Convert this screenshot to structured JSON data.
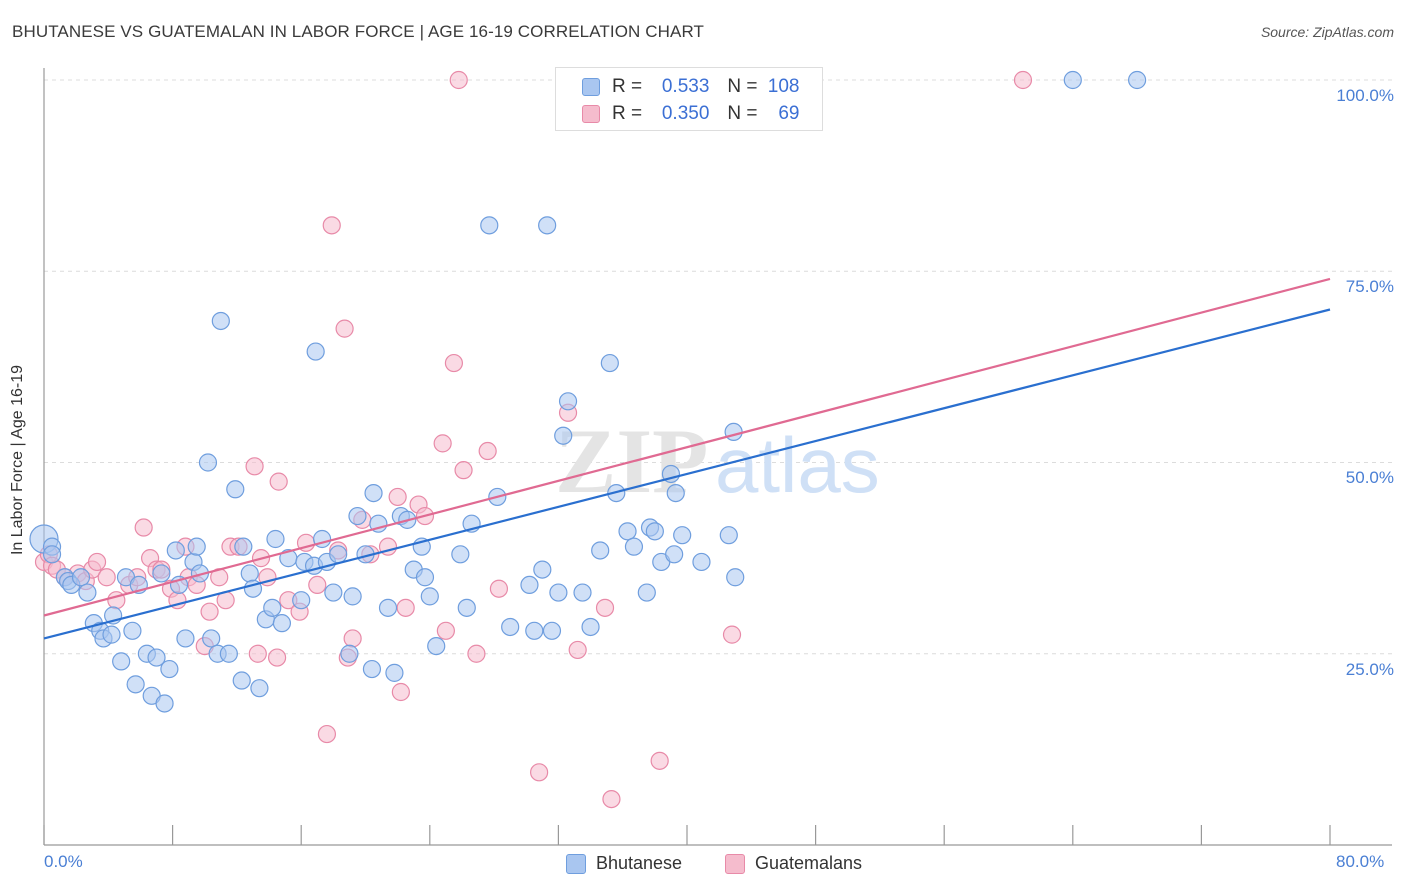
{
  "header": {
    "title": "BHUTANESE VS GUATEMALAN IN LABOR FORCE | AGE 16-19 CORRELATION CHART",
    "source": "Source: ZipAtlas.com"
  },
  "watermark": "ZIPatlas",
  "legend": {
    "rows": [
      {
        "r_label": "R =",
        "r_value": "0.533",
        "n_label": "N =",
        "n_value": "108"
      },
      {
        "r_label": "R =",
        "r_value": "0.350",
        "n_label": "N =",
        "n_value": "69"
      }
    ],
    "bottom": [
      "Bhutanese",
      "Guatemalans"
    ]
  },
  "colors": {
    "blue_fill": "#a9c6f0",
    "blue_stroke": "#6f9ede",
    "blue_line": "#2a6fcf",
    "pink_fill": "#f5bccd",
    "pink_stroke": "#e88aa8",
    "pink_line": "#e06a92",
    "tick_text": "#4a7fd4"
  },
  "chart_data": {
    "type": "scatter",
    "title": "BHUTANESE VS GUATEMALAN IN LABOR FORCE | AGE 16-19 CORRELATION CHART",
    "ylabel": "In Labor Force | Age 16-19",
    "xlabel": "",
    "xlim": [
      0,
      80
    ],
    "ylim": [
      0,
      102
    ],
    "x_tick_labels": [
      "0.0%",
      "80.0%"
    ],
    "y_tick_labels": [
      "100.0%",
      "75.0%",
      "50.0%",
      "25.0%"
    ],
    "y_ticks": [
      100,
      75,
      50,
      25
    ],
    "grid": true,
    "legend_position": "top-center",
    "series": [
      {
        "name": "Bhutanese",
        "R": 0.533,
        "N": 108,
        "trend": [
          [
            0,
            27.0
          ],
          [
            80,
            70.0
          ]
        ],
        "points": [
          [
            0.0,
            40.0
          ],
          [
            0.5,
            39.0
          ],
          [
            0.5,
            38.0
          ],
          [
            1.3,
            35.0
          ],
          [
            1.5,
            34.5
          ],
          [
            1.7,
            34.0
          ],
          [
            2.3,
            35.0
          ],
          [
            2.7,
            33.0
          ],
          [
            3.1,
            29.0
          ],
          [
            3.5,
            28.0
          ],
          [
            3.7,
            27.0
          ],
          [
            4.2,
            27.5
          ],
          [
            4.3,
            30.0
          ],
          [
            4.8,
            24.0
          ],
          [
            5.1,
            35.0
          ],
          [
            5.5,
            28.0
          ],
          [
            5.7,
            21.0
          ],
          [
            5.9,
            34.0
          ],
          [
            6.4,
            25.0
          ],
          [
            6.7,
            19.5
          ],
          [
            7.0,
            24.5
          ],
          [
            7.3,
            35.5
          ],
          [
            7.5,
            18.5
          ],
          [
            7.8,
            23.0
          ],
          [
            8.2,
            38.5
          ],
          [
            8.4,
            34.0
          ],
          [
            8.8,
            27.0
          ],
          [
            9.3,
            37.0
          ],
          [
            9.5,
            39.0
          ],
          [
            9.7,
            35.5
          ],
          [
            10.2,
            50.0
          ],
          [
            10.4,
            27.0
          ],
          [
            10.8,
            25.0
          ],
          [
            11.0,
            68.5
          ],
          [
            11.5,
            25.0
          ],
          [
            11.9,
            46.5
          ],
          [
            12.3,
            21.5
          ],
          [
            12.4,
            39.0
          ],
          [
            12.8,
            35.5
          ],
          [
            13.0,
            33.5
          ],
          [
            13.4,
            20.5
          ],
          [
            13.8,
            29.5
          ],
          [
            14.2,
            31.0
          ],
          [
            14.4,
            40.0
          ],
          [
            14.8,
            29.0
          ],
          [
            15.2,
            37.5
          ],
          [
            16.0,
            32.0
          ],
          [
            16.2,
            37.0
          ],
          [
            16.8,
            36.5
          ],
          [
            16.9,
            64.5
          ],
          [
            17.3,
            40.0
          ],
          [
            17.6,
            37.0
          ],
          [
            18.0,
            33.0
          ],
          [
            18.3,
            38.0
          ],
          [
            19.0,
            25.0
          ],
          [
            19.2,
            32.5
          ],
          [
            19.5,
            43.0
          ],
          [
            20.0,
            38.0
          ],
          [
            20.4,
            23.0
          ],
          [
            20.5,
            46.0
          ],
          [
            20.8,
            42.0
          ],
          [
            21.4,
            31.0
          ],
          [
            21.8,
            22.5
          ],
          [
            22.2,
            43.0
          ],
          [
            22.6,
            42.5
          ],
          [
            23.0,
            36.0
          ],
          [
            23.5,
            39.0
          ],
          [
            23.7,
            35.0
          ],
          [
            24.0,
            32.5
          ],
          [
            24.4,
            26.0
          ],
          [
            25.9,
            38.0
          ],
          [
            26.3,
            31.0
          ],
          [
            26.6,
            42.0
          ],
          [
            27.7,
            81.0
          ],
          [
            28.2,
            45.5
          ],
          [
            29.0,
            28.5
          ],
          [
            30.2,
            34.0
          ],
          [
            30.5,
            28.0
          ],
          [
            31.0,
            36.0
          ],
          [
            31.3,
            81.0
          ],
          [
            31.6,
            28.0
          ],
          [
            32.0,
            33.0
          ],
          [
            32.3,
            53.5
          ],
          [
            32.6,
            58.0
          ],
          [
            33.5,
            33.0
          ],
          [
            34.0,
            28.5
          ],
          [
            34.6,
            38.5
          ],
          [
            35.2,
            63.0
          ],
          [
            35.6,
            46.0
          ],
          [
            36.3,
            41.0
          ],
          [
            36.7,
            39.0
          ],
          [
            37.5,
            33.0
          ],
          [
            37.7,
            41.5
          ],
          [
            38.0,
            41.0
          ],
          [
            38.4,
            37.0
          ],
          [
            39.0,
            48.5
          ],
          [
            39.2,
            38.0
          ],
          [
            39.3,
            46.0
          ],
          [
            39.7,
            40.5
          ],
          [
            40.9,
            37.0
          ],
          [
            42.6,
            40.5
          ],
          [
            42.9,
            54.0
          ],
          [
            43.0,
            35.0
          ],
          [
            64.0,
            100.0
          ],
          [
            68.0,
            100.0
          ]
        ]
      },
      {
        "name": "Guatemalans",
        "R": 0.35,
        "N": 69,
        "trend": [
          [
            0,
            30.0
          ],
          [
            80,
            74.0
          ]
        ],
        "points": [
          [
            0.0,
            37.0
          ],
          [
            0.3,
            38.0
          ],
          [
            0.5,
            36.5
          ],
          [
            0.8,
            36.0
          ],
          [
            1.3,
            35.0
          ],
          [
            2.1,
            35.5
          ],
          [
            2.6,
            34.5
          ],
          [
            3.0,
            36.0
          ],
          [
            3.3,
            37.0
          ],
          [
            3.9,
            35.0
          ],
          [
            4.5,
            32.0
          ],
          [
            5.3,
            34.0
          ],
          [
            5.8,
            35.0
          ],
          [
            6.2,
            41.5
          ],
          [
            6.6,
            37.5
          ],
          [
            7.0,
            36.0
          ],
          [
            7.3,
            36.0
          ],
          [
            7.9,
            33.5
          ],
          [
            8.3,
            32.0
          ],
          [
            8.8,
            39.0
          ],
          [
            9.0,
            35.0
          ],
          [
            9.5,
            34.0
          ],
          [
            10.0,
            26.0
          ],
          [
            10.3,
            30.5
          ],
          [
            10.9,
            35.0
          ],
          [
            11.3,
            32.0
          ],
          [
            11.6,
            39.0
          ],
          [
            12.1,
            39.0
          ],
          [
            13.1,
            49.5
          ],
          [
            13.3,
            25.0
          ],
          [
            13.5,
            37.5
          ],
          [
            13.9,
            35.0
          ],
          [
            14.5,
            24.5
          ],
          [
            14.6,
            47.5
          ],
          [
            15.2,
            32.0
          ],
          [
            15.9,
            30.5
          ],
          [
            16.3,
            39.5
          ],
          [
            17.0,
            34.0
          ],
          [
            17.6,
            14.5
          ],
          [
            17.9,
            81.0
          ],
          [
            18.3,
            38.5
          ],
          [
            18.7,
            67.5
          ],
          [
            18.9,
            24.5
          ],
          [
            19.2,
            27.0
          ],
          [
            19.8,
            42.5
          ],
          [
            20.3,
            38.0
          ],
          [
            21.4,
            39.0
          ],
          [
            22.0,
            45.5
          ],
          [
            22.2,
            20.0
          ],
          [
            22.5,
            31.0
          ],
          [
            23.3,
            44.5
          ],
          [
            23.7,
            43.0
          ],
          [
            24.8,
            52.5
          ],
          [
            25.0,
            28.0
          ],
          [
            25.5,
            63.0
          ],
          [
            25.8,
            100.0
          ],
          [
            26.1,
            49.0
          ],
          [
            26.9,
            25.0
          ],
          [
            27.6,
            51.5
          ],
          [
            28.3,
            33.5
          ],
          [
            30.8,
            9.5
          ],
          [
            32.6,
            56.5
          ],
          [
            33.2,
            25.5
          ],
          [
            34.9,
            31.0
          ],
          [
            35.3,
            6.0
          ],
          [
            38.3,
            11.0
          ],
          [
            42.8,
            27.5
          ],
          [
            60.9,
            100.0
          ]
        ]
      }
    ]
  }
}
